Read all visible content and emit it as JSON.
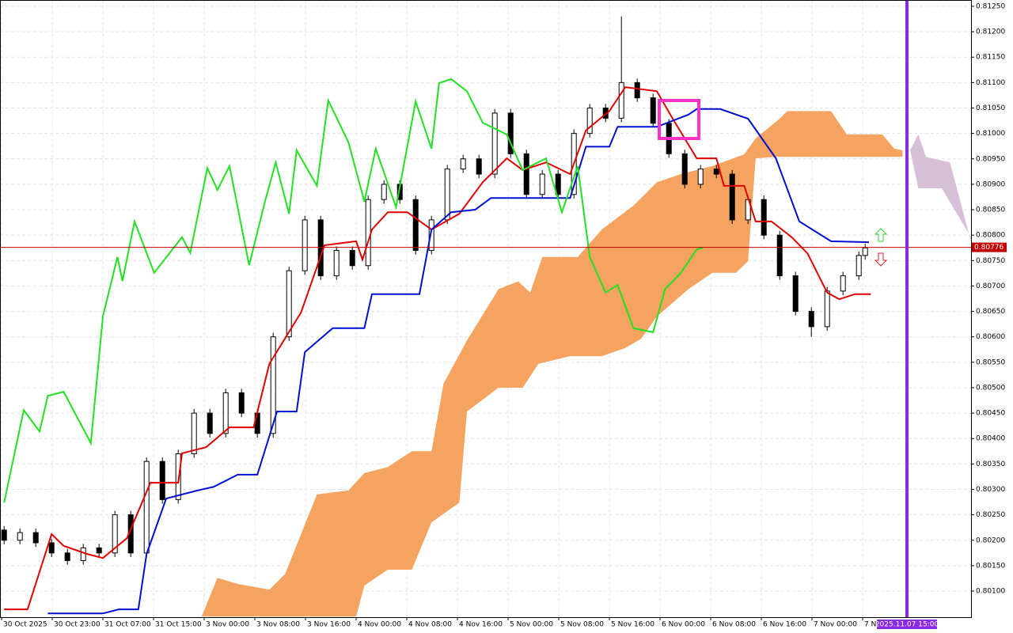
{
  "chart_data": {
    "type": "candlestick",
    "xlim": [
      -0.25,
      153.125
    ],
    "ylim": [
      0.800487,
      0.812624
    ],
    "grid": true,
    "up_color": "#ffffff",
    "down_color": "#000000",
    "xticks": [
      {
        "value": 0,
        "label": "30 Oct 2025"
      },
      {
        "value": 8,
        "label": "30 Oct 23:00"
      },
      {
        "value": 16,
        "label": "31 Oct 07:00"
      },
      {
        "value": 24,
        "label": "31 Oct 15:00"
      },
      {
        "value": 32,
        "label": "3 Nov 00:00"
      },
      {
        "value": 40,
        "label": "3 Nov 08:00"
      },
      {
        "value": 48,
        "label": "3 Nov 16:00"
      },
      {
        "value": 56,
        "label": "4 Nov 00:00"
      },
      {
        "value": 64,
        "label": "4 Nov 08:00"
      },
      {
        "value": 72,
        "label": "4 Nov 16:00"
      },
      {
        "value": 80,
        "label": "5 Nov 00:00"
      },
      {
        "value": 88,
        "label": "5 Nov 08:00"
      },
      {
        "value": 96,
        "label": "5 Nov 16:00"
      },
      {
        "value": 104,
        "label": "6 Nov 00:00"
      },
      {
        "value": 112,
        "label": "6 Nov 08:00"
      },
      {
        "value": 120,
        "label": "6 Nov 16:00"
      },
      {
        "value": 128,
        "label": "7 Nov 00:00"
      },
      {
        "value": 136,
        "label": "7 No"
      }
    ],
    "yticks": [
      {
        "value": 0.8125,
        "label": "0.81250"
      },
      {
        "value": 0.812,
        "label": "0.81200"
      },
      {
        "value": 0.8115,
        "label": "0.81150"
      },
      {
        "value": 0.811,
        "label": "0.81100"
      },
      {
        "value": 0.8105,
        "label": "0.81050"
      },
      {
        "value": 0.81,
        "label": "0.81000"
      },
      {
        "value": 0.8095,
        "label": "0.80950"
      },
      {
        "value": 0.809,
        "label": "0.80900"
      },
      {
        "value": 0.8085,
        "label": "0.80850"
      },
      {
        "value": 0.808,
        "label": "0.80800"
      },
      {
        "value": 0.8075,
        "label": "0.80750"
      },
      {
        "value": 0.807,
        "label": "0.80700"
      },
      {
        "value": 0.8065,
        "label": "0.80650"
      },
      {
        "value": 0.806,
        "label": "0.80600"
      },
      {
        "value": 0.8055,
        "label": "0.80550"
      },
      {
        "value": 0.805,
        "label": "0.80500"
      },
      {
        "value": 0.8045,
        "label": "0.80450"
      },
      {
        "value": 0.804,
        "label": "0.80400"
      },
      {
        "value": 0.8035,
        "label": "0.80350"
      },
      {
        "value": 0.803,
        "label": "0.80300"
      },
      {
        "value": 0.8025,
        "label": "0.80250"
      },
      {
        "value": 0.802,
        "label": "0.80200"
      },
      {
        "value": 0.8015,
        "label": "0.80150"
      },
      {
        "value": 0.801,
        "label": "0.80100"
      }
    ],
    "x": [
      0.4,
      2.9,
      5.4,
      7.9,
      10.4,
      12.9,
      15.4,
      17.9,
      20.4,
      22.9,
      25.4,
      27.9,
      30.4,
      32.9,
      35.4,
      37.9,
      40.4,
      42.9,
      45.4,
      47.9,
      50.4,
      52.9,
      55.4,
      57.9,
      60.4,
      62.9,
      65.4,
      67.9,
      70.4,
      72.9,
      75.4,
      77.9,
      80.4,
      82.9,
      85.4,
      87.9,
      90.4,
      92.9,
      95.4,
      97.9,
      100.4,
      102.9,
      105.4,
      107.9,
      110.4,
      112.9,
      115.4,
      117.9,
      120.4,
      122.9,
      125.4,
      127.9,
      130.4,
      132.9,
      135.4,
      136.4
    ],
    "open": [
      0.8022,
      0.802,
      0.80215,
      0.80195,
      0.80175,
      0.8016,
      0.80185,
      0.80175,
      0.8025,
      0.80175,
      0.80355,
      0.8028,
      0.8037,
      0.8045,
      0.8041,
      0.8049,
      0.8045,
      0.8041,
      0.806,
      0.8073,
      0.8083,
      0.8072,
      0.8077,
      0.8074,
      0.8087,
      0.809,
      0.8087,
      0.8077,
      0.8083,
      0.8093,
      0.8095,
      0.8092,
      0.8104,
      0.8096,
      0.8088,
      0.8092,
      0.8088,
      0.81,
      0.8105,
      0.8103,
      0.811,
      0.8107,
      0.8102,
      0.8096,
      0.809,
      0.8093,
      0.8092,
      0.8083,
      0.8087,
      0.808,
      0.8072,
      0.8065,
      0.8062,
      0.8069,
      0.8072,
      0.8076
    ],
    "high": [
      0.80228,
      0.80223,
      0.80223,
      0.80203,
      0.80183,
      0.80193,
      0.80193,
      0.80258,
      0.80258,
      0.80363,
      0.80363,
      0.80378,
      0.80458,
      0.80458,
      0.80498,
      0.80498,
      0.80458,
      0.80608,
      0.80738,
      0.80838,
      0.80838,
      0.80778,
      0.80778,
      0.80878,
      0.80908,
      0.80908,
      0.80878,
      0.80838,
      0.80938,
      0.80958,
      0.80958,
      0.81048,
      0.81048,
      0.80968,
      0.80928,
      0.80928,
      0.81008,
      0.81058,
      0.81058,
      0.8123,
      0.81108,
      0.81078,
      0.81028,
      0.80968,
      0.80938,
      0.80938,
      0.80928,
      0.80878,
      0.80878,
      0.80808,
      0.80728,
      0.80658,
      0.80698,
      0.80728,
      0.80768,
      0.80783
    ],
    "low": [
      0.80192,
      0.80192,
      0.80187,
      0.80167,
      0.80152,
      0.80152,
      0.80167,
      0.80167,
      0.80167,
      0.80167,
      0.80272,
      0.80272,
      0.80362,
      0.80402,
      0.80402,
      0.80442,
      0.80402,
      0.80402,
      0.80592,
      0.80722,
      0.80712,
      0.80712,
      0.80732,
      0.80732,
      0.80862,
      0.80862,
      0.80762,
      0.80762,
      0.80822,
      0.80922,
      0.80912,
      0.80912,
      0.80952,
      0.80872,
      0.80872,
      0.80872,
      0.80872,
      0.80992,
      0.81022,
      0.81022,
      0.81062,
      0.81012,
      0.80952,
      0.80892,
      0.80892,
      0.80912,
      0.80822,
      0.80822,
      0.80792,
      0.80712,
      0.80642,
      0.806,
      0.80612,
      0.80682,
      0.80712,
      0.80752
    ],
    "close": [
      0.802,
      0.80215,
      0.80195,
      0.80175,
      0.8016,
      0.80185,
      0.80175,
      0.8025,
      0.80175,
      0.80355,
      0.8028,
      0.8037,
      0.8045,
      0.8041,
      0.8049,
      0.8045,
      0.8041,
      0.806,
      0.8073,
      0.8083,
      0.8072,
      0.8077,
      0.8074,
      0.8087,
      0.809,
      0.8087,
      0.8077,
      0.8083,
      0.8093,
      0.8095,
      0.8092,
      0.8104,
      0.8096,
      0.8088,
      0.8092,
      0.8088,
      0.81,
      0.8105,
      0.8103,
      0.811,
      0.8107,
      0.8102,
      0.8096,
      0.809,
      0.8093,
      0.8092,
      0.8083,
      0.8087,
      0.808,
      0.8072,
      0.8065,
      0.8062,
      0.8069,
      0.8072,
      0.8076,
      0.80775
    ],
    "clouds": [
      {
        "color": "#f4a460",
        "x_a": [
          31.6,
          34.1,
          37.3,
          42.3,
          44.8,
          49.8,
          54.8,
          57.3,
          61,
          64.8,
          67.9,
          69.8,
          73.5,
          78.5,
          81.6,
          83.5,
          85.4,
          91,
          94.8,
          99.8,
          103.5,
          107.3,
          112.3,
          117.3,
          119.1,
          122.9,
          124.1,
          131,
          133.5,
          139.1,
          141,
          142.3
        ],
        "span_a": [
          0.8005,
          0.80126,
          0.80114,
          0.80103,
          0.80134,
          0.8029,
          0.80298,
          0.80332,
          0.80344,
          0.80375,
          0.80375,
          0.80508,
          0.80593,
          0.80694,
          0.80709,
          0.80687,
          0.80757,
          0.80757,
          0.80811,
          0.80858,
          0.80904,
          0.8092,
          0.80936,
          0.80959,
          0.8099,
          0.81029,
          0.81044,
          0.81044,
          0.80998,
          0.80998,
          0.8097,
          0.80967
        ],
        "x_b": [
          31.6,
          56,
          57.3,
          61,
          64.8,
          67.9,
          72.3,
          73.5,
          78.5,
          82.3,
          84.8,
          89.8,
          94.8,
          98.5,
          101,
          103.5,
          108.5,
          112.3,
          116,
          117.9,
          119.1,
          122.3,
          142.3
        ],
        "span_b": [
          0.8005,
          0.8005,
          0.80111,
          0.80142,
          0.80142,
          0.80235,
          0.80274,
          0.80453,
          0.805,
          0.805,
          0.80547,
          0.80562,
          0.80562,
          0.80578,
          0.80596,
          0.8064,
          0.80694,
          0.80726,
          0.80726,
          0.80749,
          0.80951,
          0.80954,
          0.80954
        ]
      },
      {
        "color": "#d8bfd8",
        "x_a": [
          143.5,
          144.8,
          146,
          149.8,
          153.1
        ],
        "span_a": [
          0.80967,
          0.80998,
          0.80954,
          0.80943,
          0.80788
        ],
        "x_b": [
          143.5,
          144.8,
          148.5,
          153.1
        ],
        "span_b": [
          0.80967,
          0.80892,
          0.80892,
          0.80796
        ]
      }
    ],
    "lines": [
      {
        "color": "#e00000",
        "x": [
          0.4,
          4.1,
          7.9,
          9.8,
          13.5,
          16,
          19.8,
          23.5,
          27.9,
          28.5,
          32.3,
          36,
          39.8,
          42.3,
          47.3,
          51,
          56,
          57,
          58.5,
          61,
          64.1,
          67.9,
          72.3,
          76,
          79.8,
          82.3,
          86,
          89.8,
          92.3,
          96,
          98.5,
          103.5,
          106,
          109.8,
          112.9,
          114.1,
          117.3,
          119.1,
          121.6,
          124.8,
          127.3,
          130.4,
          132.3,
          134.8,
          137.3
        ],
        "values": [
          0.80064,
          0.80064,
          0.80212,
          0.80189,
          0.80173,
          0.80165,
          0.80204,
          0.80313,
          0.80313,
          0.80371,
          0.80383,
          0.80422,
          0.80422,
          0.80547,
          0.80648,
          0.8078,
          0.80788,
          0.80752,
          0.80811,
          0.80845,
          0.80845,
          0.80811,
          0.80842,
          0.80904,
          0.80951,
          0.80928,
          0.80943,
          0.8092,
          0.81006,
          0.81044,
          0.81091,
          0.81083,
          0.81029,
          0.80951,
          0.80951,
          0.80897,
          0.80897,
          0.80827,
          0.80827,
          0.80796,
          0.80764,
          0.80687,
          0.80674,
          0.80684,
          0.80684
        ]
      },
      {
        "color": "#0010d0",
        "x": [
          7.3,
          16,
          18.5,
          21.6,
          22.9,
          26,
          31,
          33.5,
          37.3,
          40.4,
          43.5,
          46.6,
          47.9,
          52.3,
          57.3,
          58.5,
          66,
          67.9,
          71,
          74.8,
          77.3,
          89.8,
          92.3,
          96,
          97.3,
          103.5,
          108.5,
          109.8,
          113.5,
          117.9,
          122.3,
          126,
          131,
          137
        ],
        "values": [
          0.80056,
          0.80056,
          0.80064,
          0.80064,
          0.80173,
          0.80282,
          0.80298,
          0.80305,
          0.80329,
          0.80329,
          0.80453,
          0.80453,
          0.8057,
          0.80617,
          0.80617,
          0.80684,
          0.80684,
          0.80811,
          0.80845,
          0.8085,
          0.80873,
          0.80873,
          0.80974,
          0.80974,
          0.81013,
          0.81013,
          0.81037,
          0.81048,
          0.81048,
          0.81029,
          0.80951,
          0.80827,
          0.80788,
          0.80786
        ]
      },
      {
        "color": "#22e022",
        "x": [
          0.4,
          3.5,
          6,
          7.3,
          9.8,
          14.1,
          16,
          18.3,
          19.1,
          21,
          24.1,
          28.5,
          29.8,
          32.5,
          34.1,
          36,
          39.1,
          41.6,
          43.3,
          45.4,
          46.6,
          49.8,
          51.6,
          54.8,
          57.3,
          59.1,
          62.3,
          65.4,
          67.9,
          69.1,
          71,
          73.5,
          76,
          79.8,
          82.3,
          86,
          88.5,
          91,
          92.9,
          95.4,
          97.3,
          99.8,
          102.9,
          104.8,
          107.3,
          109.8,
          110.8
        ],
        "values": [
          0.80274,
          0.80456,
          0.80414,
          0.80484,
          0.80492,
          0.80391,
          0.8064,
          0.80757,
          0.8071,
          0.80827,
          0.80726,
          0.80796,
          0.80765,
          0.80932,
          0.80889,
          0.80936,
          0.80741,
          0.80866,
          0.80943,
          0.80842,
          0.80967,
          0.80897,
          0.81065,
          0.80982,
          0.80866,
          0.8097,
          0.80855,
          0.81063,
          0.8097,
          0.81099,
          0.81107,
          0.81083,
          0.81021,
          0.80998,
          0.80928,
          0.80951,
          0.80845,
          0.80936,
          0.80757,
          0.80687,
          0.80702,
          0.80617,
          0.80609,
          0.80694,
          0.80726,
          0.80772,
          0.80775
        ]
      }
    ],
    "current_price": 0.80776,
    "current_price_color": "#c00000",
    "marker": {
      "value": 143,
      "label": "2025.11.07 15:00",
      "color": "#8a2be2"
    }
  }
}
